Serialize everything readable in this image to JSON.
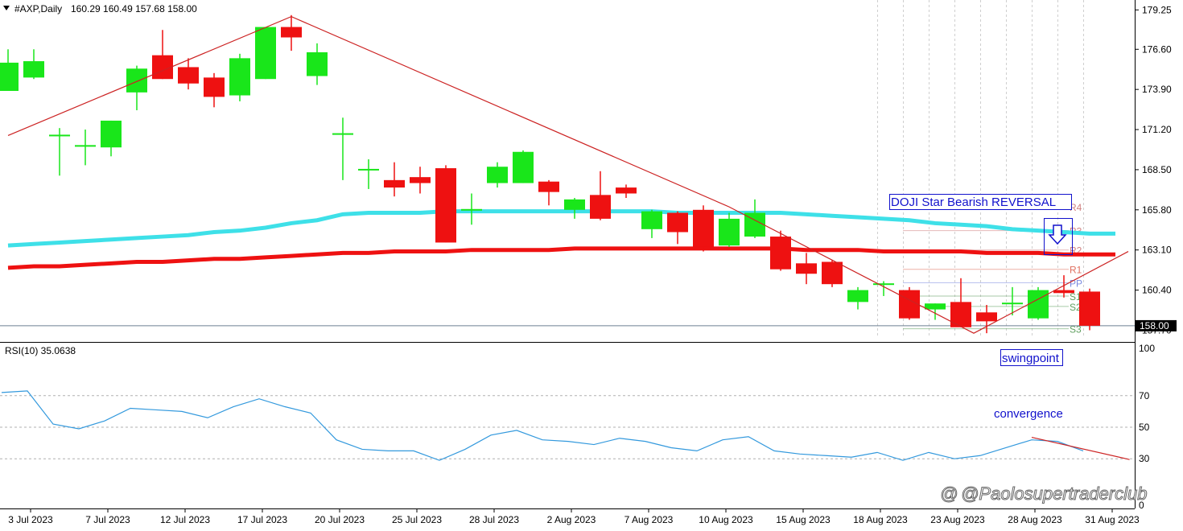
{
  "header": {
    "symbol": "#AXP,Daily",
    "ohlc": "160.29 160.49 157.68 158.00",
    "menu_icon": "triangle-down-icon"
  },
  "chart_data": [
    {
      "type": "candlestick",
      "ylim": [
        157.4,
        179.7
      ],
      "y_ticks": [
        "179.25",
        "176.60",
        "173.90",
        "171.20",
        "168.50",
        "165.80",
        "163.10",
        "160.40",
        "157.70"
      ],
      "last_price_label": "158.00",
      "last_price": 158.0,
      "x_labels": [
        "3 Jul 2023",
        "7 Jul 2023",
        "12 Jul 2023",
        "17 Jul 2023",
        "20 Jul 2023",
        "25 Jul 2023",
        "28 Jul 2023",
        "2 Aug 2023",
        "7 Aug 2023",
        "10 Aug 2023",
        "15 Aug 2023",
        "18 Aug 2023",
        "23 Aug 2023",
        "28 Aug 2023",
        "31 Aug 2023"
      ],
      "x_label_bars": [
        1,
        4,
        7,
        10,
        13,
        16,
        19,
        22,
        25,
        28,
        31,
        34,
        37,
        40,
        43
      ],
      "candles": [
        {
          "o": 173.8,
          "h": 176.6,
          "l": 173.8,
          "c": 175.7
        },
        {
          "o": 174.7,
          "h": 176.6,
          "l": 174.6,
          "c": 175.8
        },
        {
          "o": 170.8,
          "h": 171.3,
          "l": 168.1,
          "c": 170.8
        },
        {
          "o": 170.1,
          "h": 171.2,
          "l": 168.8,
          "c": 170.1
        },
        {
          "o": 170.0,
          "h": 171.8,
          "l": 169.4,
          "c": 171.8
        },
        {
          "o": 173.7,
          "h": 175.5,
          "l": 172.5,
          "c": 175.3
        },
        {
          "o": 176.2,
          "h": 177.9,
          "l": 174.6,
          "c": 174.6
        },
        {
          "o": 175.4,
          "h": 176.0,
          "l": 173.9,
          "c": 174.3
        },
        {
          "o": 174.7,
          "h": 175.0,
          "l": 172.7,
          "c": 173.4
        },
        {
          "o": 173.5,
          "h": 176.3,
          "l": 173.1,
          "c": 176.0
        },
        {
          "o": 174.6,
          "h": 178.1,
          "l": 174.6,
          "c": 178.1
        },
        {
          "o": 178.1,
          "h": 178.9,
          "l": 176.5,
          "c": 177.4
        },
        {
          "o": 174.8,
          "h": 177.0,
          "l": 174.2,
          "c": 176.4
        },
        {
          "o": 170.9,
          "h": 172.0,
          "l": 167.8,
          "c": 170.9
        },
        {
          "o": 168.5,
          "h": 169.2,
          "l": 167.2,
          "c": 168.5
        },
        {
          "o": 167.8,
          "h": 169.0,
          "l": 166.7,
          "c": 167.3
        },
        {
          "o": 168.0,
          "h": 168.7,
          "l": 166.9,
          "c": 167.6
        },
        {
          "o": 168.6,
          "h": 168.8,
          "l": 163.6,
          "c": 163.6
        },
        {
          "o": 165.8,
          "h": 166.9,
          "l": 164.8,
          "c": 165.8
        },
        {
          "o": 167.6,
          "h": 169.0,
          "l": 167.3,
          "c": 168.7
        },
        {
          "o": 167.6,
          "h": 169.8,
          "l": 167.6,
          "c": 169.7
        },
        {
          "o": 167.7,
          "h": 167.8,
          "l": 166.1,
          "c": 167.0
        },
        {
          "o": 165.8,
          "h": 166.6,
          "l": 165.2,
          "c": 166.5
        },
        {
          "o": 166.8,
          "h": 168.4,
          "l": 165.1,
          "c": 165.2
        },
        {
          "o": 167.3,
          "h": 167.5,
          "l": 166.6,
          "c": 166.9
        },
        {
          "o": 164.5,
          "h": 165.8,
          "l": 163.9,
          "c": 165.7
        },
        {
          "o": 165.6,
          "h": 165.7,
          "l": 163.5,
          "c": 164.3
        },
        {
          "o": 165.8,
          "h": 166.1,
          "l": 163.0,
          "c": 163.3
        },
        {
          "o": 163.4,
          "h": 165.6,
          "l": 163.3,
          "c": 165.2
        },
        {
          "o": 164.0,
          "h": 166.5,
          "l": 163.9,
          "c": 165.6
        },
        {
          "o": 164.0,
          "h": 164.4,
          "l": 161.7,
          "c": 161.8
        },
        {
          "o": 162.2,
          "h": 162.9,
          "l": 160.8,
          "c": 161.5
        },
        {
          "o": 162.3,
          "h": 162.4,
          "l": 160.6,
          "c": 160.8
        },
        {
          "o": 159.6,
          "h": 160.6,
          "l": 159.1,
          "c": 160.4
        },
        {
          "o": 160.8,
          "h": 161.0,
          "l": 160.0,
          "c": 160.8
        },
        {
          "o": 160.4,
          "h": 160.6,
          "l": 158.4,
          "c": 158.5
        },
        {
          "o": 159.1,
          "h": 159.5,
          "l": 158.4,
          "c": 159.5
        },
        {
          "o": 159.6,
          "h": 161.2,
          "l": 157.9,
          "c": 157.9
        },
        {
          "o": 158.9,
          "h": 159.4,
          "l": 157.5,
          "c": 158.3
        },
        {
          "o": 159.5,
          "h": 160.6,
          "l": 158.7,
          "c": 159.5
        },
        {
          "o": 158.5,
          "h": 160.6,
          "l": 158.4,
          "c": 160.4
        },
        {
          "o": 160.4,
          "h": 161.4,
          "l": 159.9,
          "c": 160.2
        },
        {
          "o": 160.3,
          "h": 160.5,
          "l": 157.7,
          "c": 158.0
        }
      ],
      "ma_fast": [
        163.4,
        163.5,
        163.6,
        163.7,
        163.8,
        163.9,
        164.0,
        164.1,
        164.3,
        164.4,
        164.6,
        164.9,
        165.1,
        165.5,
        165.6,
        165.6,
        165.6,
        165.7,
        165.7,
        165.7,
        165.7,
        165.7,
        165.7,
        165.7,
        165.7,
        165.7,
        165.6,
        165.6,
        165.6,
        165.6,
        165.6,
        165.5,
        165.4,
        165.3,
        165.2,
        165.1,
        164.9,
        164.8,
        164.7,
        164.5,
        164.4,
        164.3,
        164.2,
        164.2
      ],
      "ma_slow": [
        161.9,
        162.0,
        162.0,
        162.1,
        162.2,
        162.3,
        162.3,
        162.4,
        162.5,
        162.5,
        162.6,
        162.7,
        162.8,
        162.9,
        162.9,
        163.0,
        163.0,
        163.0,
        163.1,
        163.1,
        163.1,
        163.1,
        163.2,
        163.2,
        163.2,
        163.2,
        163.2,
        163.2,
        163.2,
        163.2,
        163.2,
        163.1,
        163.1,
        163.1,
        163.0,
        163.0,
        163.0,
        163.0,
        162.9,
        162.9,
        162.9,
        162.8,
        162.8,
        162.8
      ],
      "trendlines": [
        {
          "points": [
            [
              0,
              170.8
            ],
            [
              11,
              178.8
            ],
            [
              28,
              166.0
            ],
            [
              37.5,
              157.5
            ],
            [
              43.5,
              163.0
            ]
          ]
        }
      ],
      "pivots": [
        {
          "label": "R4",
          "value": 166.0,
          "color": "#d08080"
        },
        {
          "label": "R3",
          "value": 164.4,
          "color": "#d08080"
        },
        {
          "label": "R2",
          "value": 163.1,
          "color": "#d08080"
        },
        {
          "label": "R1",
          "value": 161.8,
          "color": "#e07060"
        },
        {
          "label": "PP",
          "value": 160.9,
          "color": "#7a8ae0"
        },
        {
          "label": "S1",
          "value": 160.0,
          "color": "#60a060"
        },
        {
          "label": "S2",
          "value": 159.3,
          "color": "#60a060"
        },
        {
          "label": "S3",
          "value": 157.8,
          "color": "#60a060"
        }
      ],
      "annotations": {
        "doji": "DOJI Star Bearish REVERSAL",
        "swing": "swingpoint"
      }
    },
    {
      "type": "line",
      "title": "RSI(10) 35.0638",
      "ylim": [
        25,
        100
      ],
      "y_ticks": [
        "100",
        "70",
        "50",
        "30",
        "0"
      ],
      "levels": [
        70,
        50,
        30
      ],
      "values": [
        72,
        73,
        52,
        49,
        54,
        62,
        61,
        60,
        56,
        63,
        68,
        63,
        59,
        42,
        36,
        35,
        35,
        29,
        36,
        45,
        48,
        42,
        41,
        39,
        43,
        41,
        37,
        35,
        42,
        44,
        35,
        33,
        32,
        31,
        34,
        29,
        34,
        30,
        32,
        37,
        42,
        41,
        35
      ],
      "trendline": [
        [
          40,
          43.6
        ],
        [
          43.8,
          29.5
        ]
      ],
      "annotations": {
        "convergence": "convergence"
      }
    }
  ],
  "watermark": "@Paolosupertraderclub",
  "colors": {
    "bull": "#19e61a",
    "bear": "#ee1111",
    "ma_fast": "#3ee0e8",
    "ma_slow": "#ee1111",
    "trend": "#cc2222",
    "rsi": "#3399dd",
    "annotation": "#1111cc"
  }
}
